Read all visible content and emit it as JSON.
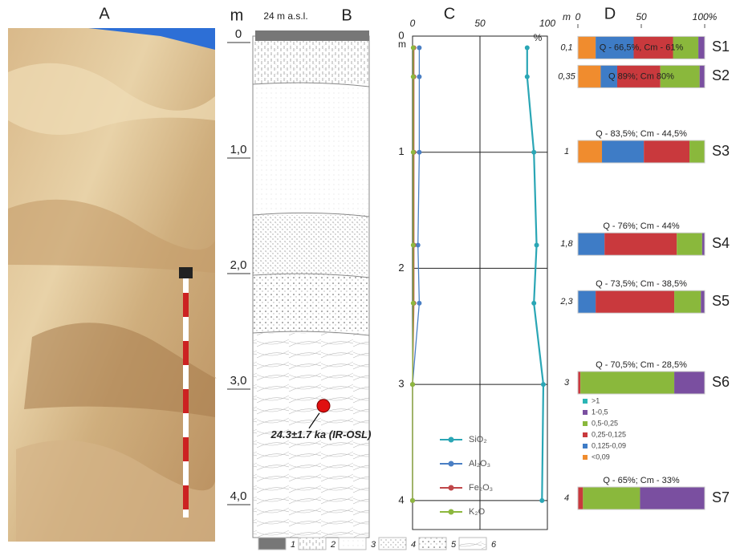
{
  "panel_labels": [
    "A",
    "B",
    "C",
    "D"
  ],
  "section": {
    "depth_unit": "m",
    "elevation": "24 m a.s.l.",
    "depth_ticks": [
      {
        "value": 0,
        "label": "0"
      },
      {
        "value": 1,
        "label": "1,0"
      },
      {
        "value": 2,
        "label": "2,0"
      },
      {
        "value": 3,
        "label": "3,0"
      },
      {
        "value": 4,
        "label": "4,0"
      }
    ],
    "dating": {
      "depth": 3.2,
      "label": "24.3±1.7 ka (IR-OSL)"
    },
    "legend": [
      "1",
      "2",
      "3",
      "4",
      "5",
      "6"
    ]
  },
  "chart_data": [
    {
      "type": "line",
      "x_label": "m",
      "y_label": "%",
      "x": [
        0.1,
        0.35,
        1,
        1.8,
        2.3,
        3,
        4
      ],
      "xlim": [
        0,
        4.25
      ],
      "xticks": [
        0,
        1,
        2,
        3,
        4
      ],
      "ylim": [
        0,
        100
      ],
      "yticks": [
        0,
        50,
        100
      ],
      "grid": true,
      "series": [
        {
          "name": "SiO₂",
          "color": "#2aa6b5",
          "values": [
            85,
            85,
            90,
            92,
            90,
            97,
            96
          ]
        },
        {
          "name": "Al₂O₃",
          "color": "#4a7fc4",
          "values": [
            5,
            5,
            5,
            4,
            5,
            0,
            0
          ]
        },
        {
          "name": "Fe₂O₃",
          "color": "#c0474a",
          "values": [
            1,
            1,
            1,
            1,
            1,
            0,
            0
          ]
        },
        {
          "name": "K₂O",
          "color": "#8db83f",
          "values": [
            0.5,
            0.5,
            0.5,
            0.5,
            0.5,
            0,
            0
          ]
        }
      ]
    },
    {
      "type": "bar",
      "depth_unit": "m",
      "categories": [
        "S1",
        "S2",
        "S3",
        "S4",
        "S5",
        "S6",
        "S7"
      ],
      "depths": [
        0.1,
        0.35,
        1,
        1.8,
        2.3,
        3,
        4
      ],
      "depth_labels": [
        "0,1",
        "0,35",
        "1",
        "1,8",
        "2,3",
        "3",
        "4"
      ],
      "annotations": [
        "Q - 66,5%, Cm - 61%",
        "Q 89%; Cm 80%",
        "Q - 83,5%; Cm - 44,5%",
        "Q - 76%; Cm - 44%",
        "Q - 73,5%; Cm - 38,5%",
        "Q - 70,5%; Cm - 28,5%",
        "Q - 65%; Cm - 33%"
      ],
      "xlim": [
        0,
        100
      ],
      "xticks": [
        0,
        50,
        {
          "value": 100,
          "label": "100%"
        }
      ],
      "series": [
        {
          "name": "<0,09",
          "color": "#f08c2e",
          "values": [
            14,
            18,
            19,
            0,
            0,
            0,
            0
          ]
        },
        {
          "name": "0,125-0,09",
          "color": "#3e7cc6",
          "values": [
            30,
            13,
            33,
            21,
            14,
            0,
            0
          ]
        },
        {
          "name": "0,25-0,125",
          "color": "#c9393d",
          "values": [
            31,
            34,
            36,
            57,
            62,
            2,
            4
          ]
        },
        {
          "name": "0,5-0,25",
          "color": "#8ab83c",
          "values": [
            20,
            31,
            12,
            20,
            21,
            74,
            45
          ]
        },
        {
          "name": "1-0,5",
          "color": "#7a4fa0",
          "values": [
            5,
            4,
            0,
            2,
            3,
            24,
            51
          ]
        },
        {
          "name": ">1",
          "color": "#2ab5b5",
          "values": [
            0,
            0,
            0,
            0,
            0,
            0,
            0
          ]
        }
      ]
    }
  ]
}
